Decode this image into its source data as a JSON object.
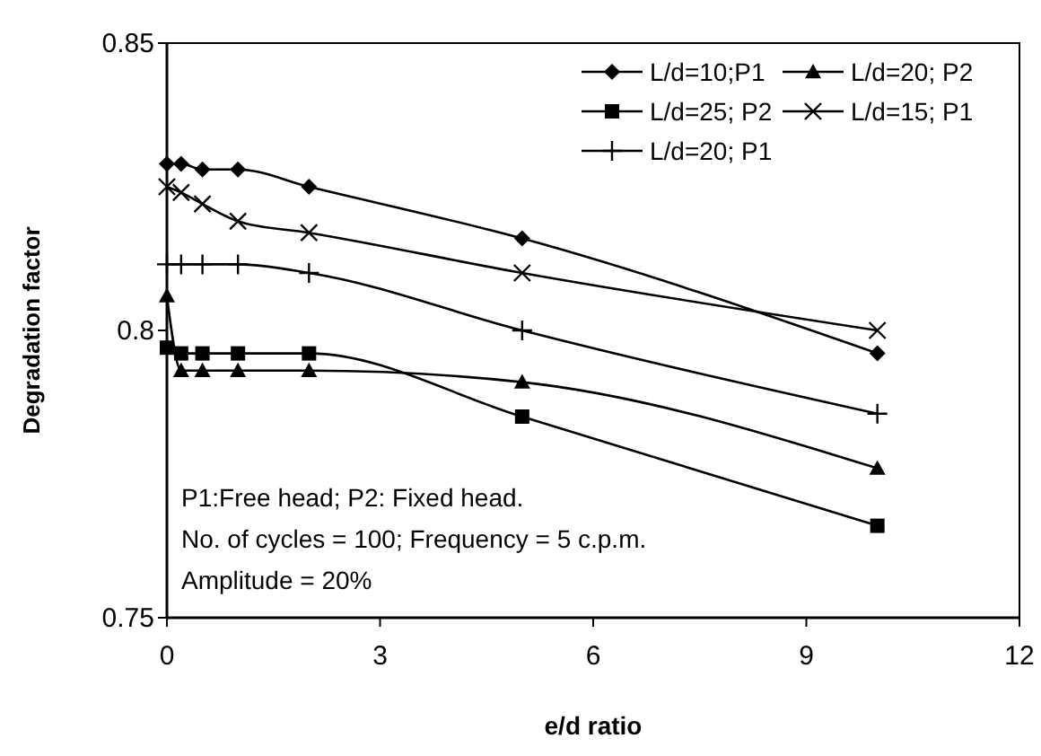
{
  "chart_data": {
    "type": "line",
    "xlabel": "e/d  ratio",
    "ylabel": "Degradation factor",
    "x": [
      0,
      0.2,
      0.5,
      1,
      2,
      5,
      10
    ],
    "xlim": [
      0,
      12
    ],
    "xticks": [
      0,
      3,
      6,
      9,
      12
    ],
    "ylim": [
      0.75,
      0.85
    ],
    "yticks": [
      0.75,
      0.8,
      0.85
    ],
    "grid": false,
    "legend": "top right",
    "series": [
      {
        "name": "L/d=10;P1",
        "color": "#000000",
        "marker": "diamond",
        "values": [
          0.829,
          0.829,
          0.828,
          0.828,
          0.825,
          0.816,
          0.796
        ]
      },
      {
        "name": "L/d=20; P2",
        "color": "#000000",
        "marker": "triangle",
        "values": [
          0.806,
          0.793,
          0.793,
          0.793,
          0.793,
          0.791,
          0.776
        ]
      },
      {
        "name": "L/d=25; P2",
        "color": "#000000",
        "marker": "square",
        "values": [
          0.797,
          0.796,
          0.796,
          0.796,
          0.796,
          0.785,
          0.766
        ]
      },
      {
        "name": "L/d=15; P1",
        "color": "#000000",
        "marker": "x",
        "values": [
          0.825,
          0.824,
          0.822,
          0.819,
          0.817,
          0.81,
          0.8
        ]
      },
      {
        "name": "L/d=20; P1",
        "color": "#000000",
        "marker": "cross",
        "values": [
          0.8115,
          0.8115,
          0.8115,
          0.8115,
          0.81,
          0.8,
          0.7855
        ]
      }
    ],
    "annotations": [
      "P1:Free head; P2: Fixed head.",
      "No. of cycles = 100; Frequency = 5 c.p.m.",
      "Amplitude = 20%"
    ]
  }
}
